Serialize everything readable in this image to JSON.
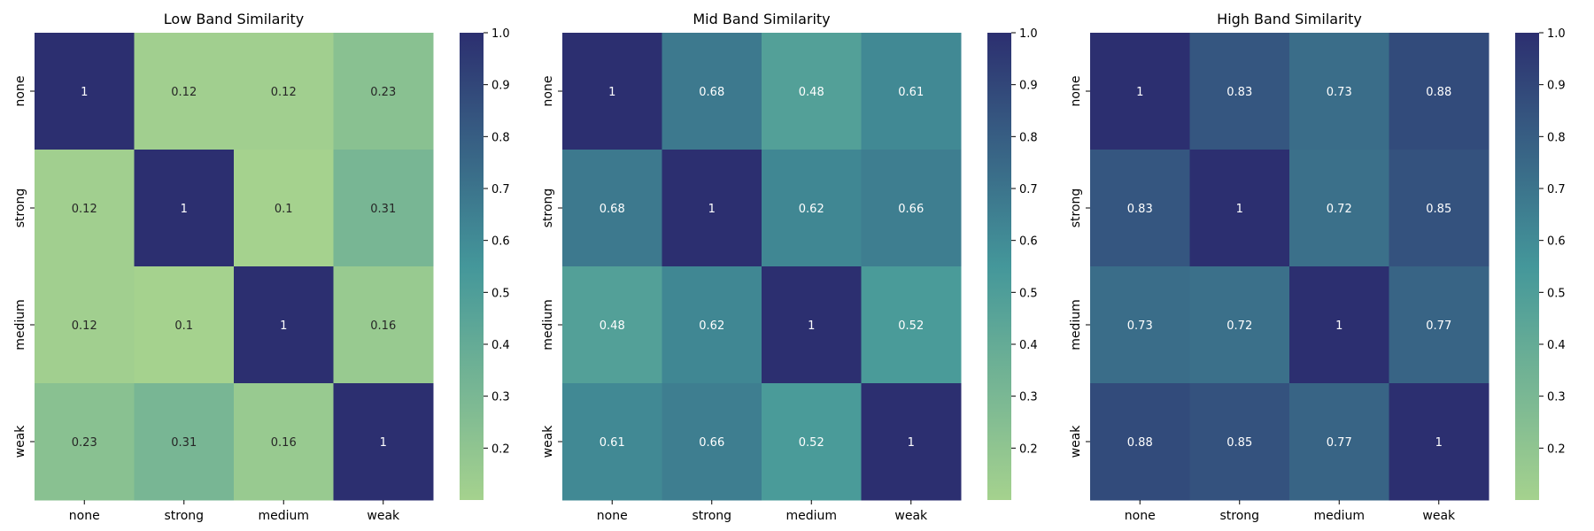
{
  "chart_data": [
    {
      "type": "heatmap",
      "title": "Low Band Similarity",
      "x_categories": [
        "none",
        "strong",
        "medium",
        "weak"
      ],
      "y_categories": [
        "none",
        "strong",
        "medium",
        "weak"
      ],
      "values": [
        [
          1,
          0.12,
          0.12,
          0.23
        ],
        [
          0.12,
          1,
          0.1,
          0.31
        ],
        [
          0.12,
          0.1,
          1,
          0.16
        ],
        [
          0.23,
          0.31,
          0.16,
          1
        ]
      ],
      "value_labels": [
        [
          "1",
          "0.12",
          "0.12",
          "0.23"
        ],
        [
          "0.12",
          "1",
          "0.1",
          "0.31"
        ],
        [
          "0.12",
          "0.1",
          "1",
          "0.16"
        ],
        [
          "0.23",
          "0.31",
          "0.16",
          "1"
        ]
      ],
      "colorbar": {
        "min": 0.1,
        "max": 1.0,
        "ticks": [
          "0.2",
          "0.3",
          "0.4",
          "0.5",
          "0.6",
          "0.7",
          "0.8",
          "0.9",
          "1.0"
        ]
      }
    },
    {
      "type": "heatmap",
      "title": "Mid Band Similarity",
      "x_categories": [
        "none",
        "strong",
        "medium",
        "weak"
      ],
      "y_categories": [
        "none",
        "strong",
        "medium",
        "weak"
      ],
      "values": [
        [
          1,
          0.68,
          0.48,
          0.61
        ],
        [
          0.68,
          1,
          0.62,
          0.66
        ],
        [
          0.48,
          0.62,
          1,
          0.52
        ],
        [
          0.61,
          0.66,
          0.52,
          1
        ]
      ],
      "value_labels": [
        [
          "1",
          "0.68",
          "0.48",
          "0.61"
        ],
        [
          "0.68",
          "1",
          "0.62",
          "0.66"
        ],
        [
          "0.48",
          "0.62",
          "1",
          "0.52"
        ],
        [
          "0.61",
          "0.66",
          "0.52",
          "1"
        ]
      ],
      "colorbar": {
        "min": 0.1,
        "max": 1.0,
        "ticks": [
          "0.2",
          "0.3",
          "0.4",
          "0.5",
          "0.6",
          "0.7",
          "0.8",
          "0.9",
          "1.0"
        ]
      }
    },
    {
      "type": "heatmap",
      "title": "High Band Similarity",
      "x_categories": [
        "none",
        "strong",
        "medium",
        "weak"
      ],
      "y_categories": [
        "none",
        "strong",
        "medium",
        "weak"
      ],
      "values": [
        [
          1,
          0.83,
          0.73,
          0.88
        ],
        [
          0.83,
          1,
          0.72,
          0.85
        ],
        [
          0.73,
          0.72,
          1,
          0.77
        ],
        [
          0.88,
          0.85,
          0.77,
          1
        ]
      ],
      "value_labels": [
        [
          "1",
          "0.83",
          "0.73",
          "0.88"
        ],
        [
          "0.83",
          "1",
          "0.72",
          "0.85"
        ],
        [
          "0.73",
          "0.72",
          "1",
          "0.77"
        ],
        [
          "0.88",
          "0.85",
          "0.77",
          "1"
        ]
      ],
      "colorbar": {
        "min": 0.1,
        "max": 1.0,
        "ticks": [
          "0.2",
          "0.3",
          "0.4",
          "0.5",
          "0.6",
          "0.7",
          "0.8",
          "0.9",
          "1.0"
        ]
      }
    }
  ],
  "colormap": "crest",
  "colors": {
    "low": "#a5d28e",
    "mid": "#44979a",
    "high": "#2c2f70",
    "text_dark": "#262626",
    "text_light": "#ffffff"
  }
}
